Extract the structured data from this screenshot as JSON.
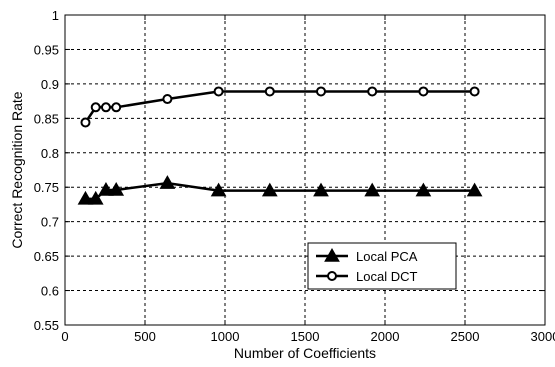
{
  "chart_data": {
    "type": "line",
    "xlabel": "Number of Coefficients",
    "ylabel": "Correct Recognition Rate",
    "xlim": [
      0,
      3000
    ],
    "ylim": [
      0.55,
      1
    ],
    "xticks": [
      "0",
      "500",
      "1000",
      "1500",
      "2000",
      "2500",
      "3000"
    ],
    "yticks": [
      "0.55",
      "0.6",
      "0.65",
      "0.7",
      "0.75",
      "0.8",
      "0.85",
      "0.9",
      "0.95",
      "1"
    ],
    "grid": true,
    "legend_position": "lower-right",
    "series": [
      {
        "name": "Local PCA",
        "marker": "triangle",
        "color": "#000000",
        "x": [
          128,
          192,
          256,
          320,
          640,
          960,
          1280,
          1600,
          1920,
          2240,
          2560
        ],
        "y": [
          0.733,
          0.733,
          0.746,
          0.746,
          0.756,
          0.745,
          0.745,
          0.745,
          0.745,
          0.745,
          0.745
        ]
      },
      {
        "name": "Local DCT",
        "marker": "circle",
        "color": "#000000",
        "x": [
          128,
          192,
          256,
          320,
          640,
          960,
          1280,
          1600,
          1920,
          2240,
          2560
        ],
        "y": [
          0.844,
          0.866,
          0.866,
          0.866,
          0.878,
          0.889,
          0.889,
          0.889,
          0.889,
          0.889,
          0.889
        ]
      }
    ]
  }
}
